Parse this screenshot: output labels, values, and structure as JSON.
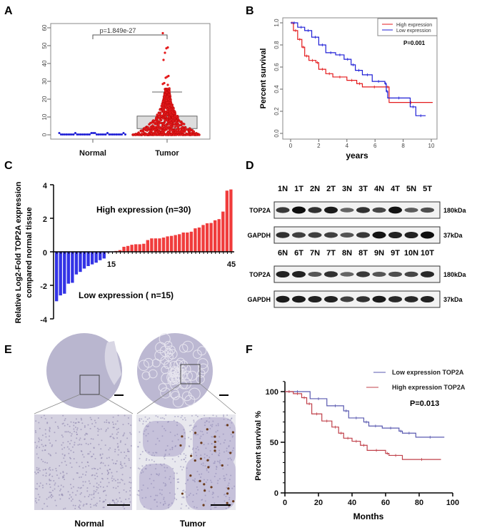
{
  "panels": {
    "a": "A",
    "b": "B",
    "c": "C",
    "d": "D",
    "e": "E",
    "f": "F"
  },
  "chart_data": [
    {
      "panel": "A",
      "type": "scatter",
      "categories": [
        "Normal",
        "Tumor"
      ],
      "ylim": [
        0,
        60
      ],
      "yticks": [
        "0",
        "10",
        "20",
        "30",
        "40",
        "50",
        "60"
      ],
      "annotation": "p=1.849e-27",
      "tumor_box": {
        "q1": 3.5,
        "median": 4,
        "q3": 10.5,
        "upper_whisker": 24
      },
      "tumor_outliers": [
        57,
        49,
        48.5,
        46,
        42,
        33,
        32.5,
        32,
        29,
        28.5,
        28
      ],
      "colors": {
        "Normal": "#1f1fd6",
        "Tumor": "#e41a1c"
      }
    },
    {
      "panel": "B",
      "type": "line",
      "xlabel": "years",
      "ylabel": "Percent survival",
      "xlim": [
        0,
        10
      ],
      "ylim": [
        0,
        1
      ],
      "xticks": [
        "0",
        "2",
        "4",
        "6",
        "8",
        "10"
      ],
      "yticks": [
        "0.0",
        "0.2",
        "0.4",
        "0.6",
        "0.8",
        "1.0"
      ],
      "annotation": "P=0.001",
      "legend": "top-right",
      "series": [
        {
          "name": "High expression",
          "color": "#e41a1c",
          "points": [
            [
              0,
              1
            ],
            [
              0.2,
              0.93
            ],
            [
              0.5,
              0.85
            ],
            [
              0.8,
              0.78
            ],
            [
              1,
              0.7
            ],
            [
              1.3,
              0.66
            ],
            [
              1.8,
              0.64
            ],
            [
              2,
              0.58
            ],
            [
              2.5,
              0.54
            ],
            [
              3,
              0.51
            ],
            [
              4,
              0.48
            ],
            [
              4.7,
              0.45
            ],
            [
              5.1,
              0.42
            ],
            [
              6.8,
              0.42
            ],
            [
              7,
              0.28
            ],
            [
              10.1,
              0.28
            ]
          ]
        },
        {
          "name": "Low expression",
          "color": "#1f1fd6",
          "points": [
            [
              0,
              1
            ],
            [
              0.5,
              0.96
            ],
            [
              1,
              0.93
            ],
            [
              1.5,
              0.87
            ],
            [
              2,
              0.8
            ],
            [
              2.5,
              0.73
            ],
            [
              3.2,
              0.71
            ],
            [
              3.8,
              0.67
            ],
            [
              4.3,
              0.62
            ],
            [
              4.6,
              0.57
            ],
            [
              5.1,
              0.53
            ],
            [
              5.8,
              0.47
            ],
            [
              6.7,
              0.45
            ],
            [
              6.8,
              0.38
            ],
            [
              6.9,
              0.32
            ],
            [
              8.5,
              0.24
            ],
            [
              8.9,
              0.16
            ],
            [
              9.6,
              0.16
            ]
          ]
        }
      ]
    },
    {
      "panel": "C",
      "type": "bar",
      "ylabel_line1": "Relative Log2-Fold TOP2A expression",
      "ylabel_line2": "compared normal tissue",
      "ylim": [
        -4,
        4
      ],
      "yticks": [
        "-4",
        "-2",
        "0",
        "2",
        "4"
      ],
      "xtick_labels": [
        "15",
        "45"
      ],
      "annotations": {
        "high": "High expression (n=30)",
        "low": "Low expression ( n=15)"
      },
      "colors": {
        "low": "#3333e6",
        "high": "#f03c3c"
      },
      "values": [
        -2.95,
        -2.6,
        -2.5,
        -1.9,
        -1.85,
        -1.35,
        -1.2,
        -1.0,
        -0.85,
        -0.75,
        -0.65,
        -0.5,
        -0.4,
        -0.05,
        -0.02,
        0.05,
        0.1,
        0.3,
        0.35,
        0.42,
        0.45,
        0.45,
        0.48,
        0.7,
        0.8,
        0.8,
        0.8,
        0.85,
        0.92,
        0.95,
        1.0,
        1.05,
        1.15,
        1.15,
        1.2,
        1.4,
        1.45,
        1.6,
        1.7,
        1.72,
        1.88,
        1.95,
        2.4,
        3.65,
        3.72
      ]
    },
    {
      "panel": "F",
      "type": "line",
      "xlabel": "Months",
      "ylabel": "Percent survival %",
      "xlim": [
        0,
        100
      ],
      "ylim": [
        0,
        100
      ],
      "xticks": [
        "0",
        "20",
        "40",
        "60",
        "80",
        "100"
      ],
      "yticks": [
        "0",
        "50",
        "100"
      ],
      "annotation": "P=0.013",
      "legend": "top-right",
      "series": [
        {
          "name": "Low expression TOP2A",
          "color": "#5a5ab0",
          "points": [
            [
              0,
              100
            ],
            [
              15,
              93
            ],
            [
              25,
              86
            ],
            [
              35,
              81
            ],
            [
              38,
              74
            ],
            [
              47,
              70
            ],
            [
              50,
              66
            ],
            [
              58,
              64
            ],
            [
              68,
              61
            ],
            [
              70,
              59
            ],
            [
              78,
              55
            ],
            [
              95,
              55
            ]
          ]
        },
        {
          "name": "High expression TOP2A",
          "color": "#c0404a",
          "points": [
            [
              0,
              100
            ],
            [
              5,
              98
            ],
            [
              10,
              94
            ],
            [
              13,
              88
            ],
            [
              16,
              78
            ],
            [
              22,
              71
            ],
            [
              28,
              65
            ],
            [
              32,
              59
            ],
            [
              35,
              54
            ],
            [
              40,
              51
            ],
            [
              45,
              47
            ],
            [
              49,
              42
            ],
            [
              60,
              39
            ],
            [
              62,
              37
            ],
            [
              70,
              33
            ],
            [
              93,
              33
            ]
          ]
        }
      ]
    }
  ],
  "blot": {
    "sets": [
      {
        "lanes": [
          "1N",
          "1T",
          "2N",
          "2T",
          "3N",
          "3T",
          "4N",
          "4T",
          "5N",
          "5T"
        ],
        "top2a": [
          0.7,
          1.0,
          0.75,
          0.9,
          0.4,
          0.75,
          0.6,
          0.95,
          0.45,
          0.55
        ],
        "gapdh": [
          0.75,
          0.65,
          0.65,
          0.65,
          0.5,
          0.7,
          0.95,
          0.85,
          0.85,
          1.0
        ]
      },
      {
        "lanes": [
          "6N",
          "6T",
          "7N",
          "7T",
          "8N",
          "8T",
          "9N",
          "9T",
          "10N",
          "10T"
        ],
        "top2a": [
          0.85,
          0.85,
          0.5,
          0.75,
          0.4,
          0.7,
          0.5,
          0.55,
          0.6,
          0.8
        ],
        "gapdh": [
          0.9,
          0.9,
          0.85,
          0.85,
          0.65,
          0.75,
          0.9,
          0.8,
          0.8,
          0.85
        ]
      }
    ],
    "rows": [
      "TOP2A",
      "GAPDH"
    ],
    "sizes": [
      "180kDa",
      "37kDa"
    ]
  },
  "ihc": {
    "labels": [
      "Normal",
      "Tumor"
    ]
  }
}
